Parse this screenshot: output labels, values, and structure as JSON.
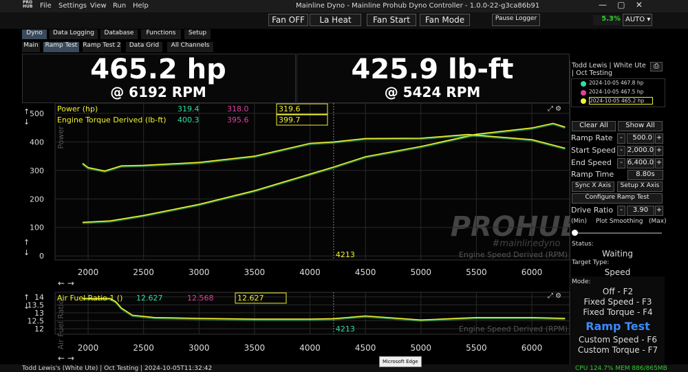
{
  "titlebar": {
    "logo": "PRO HUB",
    "menu": [
      "File",
      "Settings",
      "View",
      "Run",
      "Help"
    ],
    "title": "Mainline Dyno - Mainline Prohub Dyno Controller - 1.0.0-22-g3ca86b91"
  },
  "toolbar": {
    "buttons": [
      "Fan OFF",
      "La Heat",
      "Fan Start",
      "Fan Mode",
      "Pause Logger"
    ],
    "fan_percent": "5.3%",
    "fan_mode": "AUTO"
  },
  "tabs": [
    "Dyno",
    "Data Logging",
    "Database",
    "Functions",
    "Setup"
  ],
  "subtabs": [
    "Main",
    "Ramp Test",
    "Ramp Test 2",
    "Data Grid",
    "All Channels"
  ],
  "readouts": {
    "power": "465.2 hp",
    "power_rpm": "@ 6192 RPM",
    "torque": "425.9 lb-ft",
    "torque_rpm": "@ 5424 RPM"
  },
  "power_chart": {
    "type": "line",
    "y_label": "Power",
    "x_label": "Engine Speed Derived (RPM)",
    "watermark": "PROHUB",
    "watermark_sub": "#mainlinedyno",
    "xlim": [
      1702,
      6341
    ],
    "ylim": [
      -14,
      536
    ],
    "xticks": [
      2000,
      2500,
      3000,
      3500,
      4000,
      4500,
      5000,
      5500,
      6000
    ],
    "yticks": [
      0,
      100,
      200,
      300,
      400,
      500
    ],
    "grid": true,
    "cursor": 4213,
    "series": [
      {
        "name": "Power (hp)",
        "color": "#f2f230",
        "cursor_values": [
          "319.4",
          "318.0",
          "319.6"
        ],
        "x": [
          1950,
          2000,
          2200,
          2500,
          3000,
          3500,
          4000,
          4213,
          4500,
          5000,
          5500,
          6000,
          6192,
          6300
        ],
        "values": [
          118,
          119,
          123,
          142,
          181,
          229,
          287,
          312,
          348,
          384,
          427,
          449,
          465,
          452
        ]
      },
      {
        "name": "Engine Torque Derived (lb-ft)",
        "color": "#f2f230",
        "cursor_values": [
          "400.3",
          "395.6",
          "399.7"
        ],
        "x": [
          1950,
          2000,
          2150,
          2300,
          2500,
          3000,
          3500,
          4000,
          4213,
          4500,
          5000,
          5424,
          6000,
          6300
        ],
        "values": [
          325,
          310,
          298,
          316,
          318,
          328,
          350,
          395,
          400,
          412,
          413,
          426,
          408,
          378
        ]
      }
    ]
  },
  "afr_chart": {
    "type": "line",
    "y_label": "Air Fuel Ratio",
    "x_label": "Engine Speed Derived (RPM)",
    "xlim": [
      1702,
      6341
    ],
    "ylim": [
      11.65,
      14.3
    ],
    "xticks": [
      2000,
      2500,
      3000,
      3500,
      4000,
      4500,
      5000,
      5500,
      6000
    ],
    "yticks": [
      12,
      12.5,
      13,
      13.5,
      14
    ],
    "grid": true,
    "cursor": 4213,
    "series": [
      {
        "name": "Air Fuel Ratio 1 ()",
        "color": "#f2f230",
        "cursor_values": [
          "12.627",
          "12.568",
          "12.627"
        ],
        "x": [
          1950,
          2200,
          2250,
          2300,
          2400,
          2600,
          3000,
          3500,
          4000,
          4213,
          4500,
          5000,
          5500,
          6000,
          6300
        ],
        "values": [
          13.9,
          13.9,
          13.7,
          13.3,
          12.85,
          12.7,
          12.65,
          12.6,
          12.6,
          12.63,
          12.8,
          12.55,
          12.7,
          12.7,
          12.65
        ]
      }
    ]
  },
  "panel": {
    "header": "Todd Lewis | White Ute | Oct Testing",
    "runs": [
      "2024-10-05 467.8 hp",
      "2024-10-05 467.5 hp",
      "2024-10-05 465.2 hp"
    ],
    "run_colors": [
      "#2ee0a0",
      "#e040a0",
      "#f2f230"
    ],
    "clear": "Clear All",
    "show": "Show All",
    "params": [
      {
        "label": "Ramp Rate",
        "value": "500.0"
      },
      {
        "label": "Start Speed",
        "value": "2,000.0"
      },
      {
        "label": "End Speed",
        "value": "6,400.0"
      }
    ],
    "ramp_time_label": "Ramp Time",
    "ramp_time": "8.80s",
    "sync": "Sync X Axis",
    "setup": "Setup X Axis",
    "configure": "Configure Ramp Test",
    "drive_ratio_label": "Drive Ratio",
    "drive_ratio": "3.90",
    "min": "(Min)",
    "smoothing": "Plot Smoothing",
    "max": "(Max)",
    "status_label": "Status:",
    "status": "Waiting",
    "target_label": "Target Type:",
    "target": "Speed",
    "mode_label": "Mode:",
    "modes": [
      "Off - F2",
      "Fixed Speed - F3",
      "Fixed Torque - F4",
      "Ramp Test",
      "Custom Speed - F6",
      "Custom Torque - F7"
    ],
    "active_mode": 3
  },
  "statusbar": {
    "left": "Todd Lewis's (White Ute) | Oct Testing | 2024-10-05T11:32:42",
    "tooltip": "Microsoft Edge",
    "right": "CPU 124.7% MEM 886/865MB"
  }
}
